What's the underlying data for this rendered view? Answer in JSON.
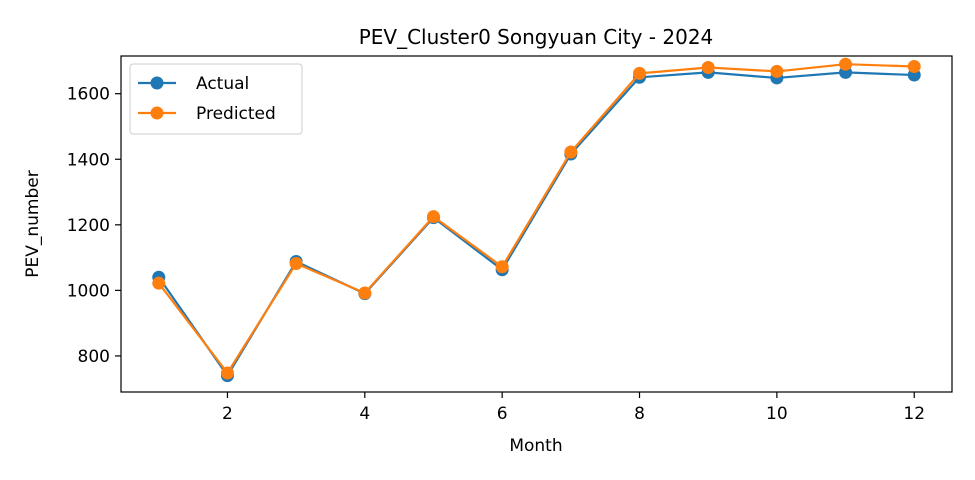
{
  "chart_data": {
    "type": "line",
    "title": "PEV_Cluster0 Songyuan City - 2024",
    "xlabel": "Month",
    "ylabel": "PEV_number",
    "x": [
      1,
      2,
      3,
      4,
      5,
      6,
      7,
      8,
      9,
      10,
      11,
      12
    ],
    "xlim": [
      0.45,
      12.55
    ],
    "ylim": [
      690,
      1715
    ],
    "xticks": [
      2,
      4,
      6,
      8,
      10,
      12
    ],
    "yticks": [
      800,
      1000,
      1200,
      1400,
      1600
    ],
    "grid": false,
    "legend_position": "top-left",
    "series": [
      {
        "name": "Actual",
        "color": "#1f77b4",
        "values": [
          1040,
          740,
          1088,
          990,
          1222,
          1063,
          1416,
          1650,
          1665,
          1648,
          1665,
          1657
        ]
      },
      {
        "name": "Predicted",
        "color": "#ff7f0e",
        "values": [
          1022,
          748,
          1082,
          992,
          1225,
          1072,
          1422,
          1662,
          1680,
          1668,
          1690,
          1683
        ]
      }
    ]
  }
}
